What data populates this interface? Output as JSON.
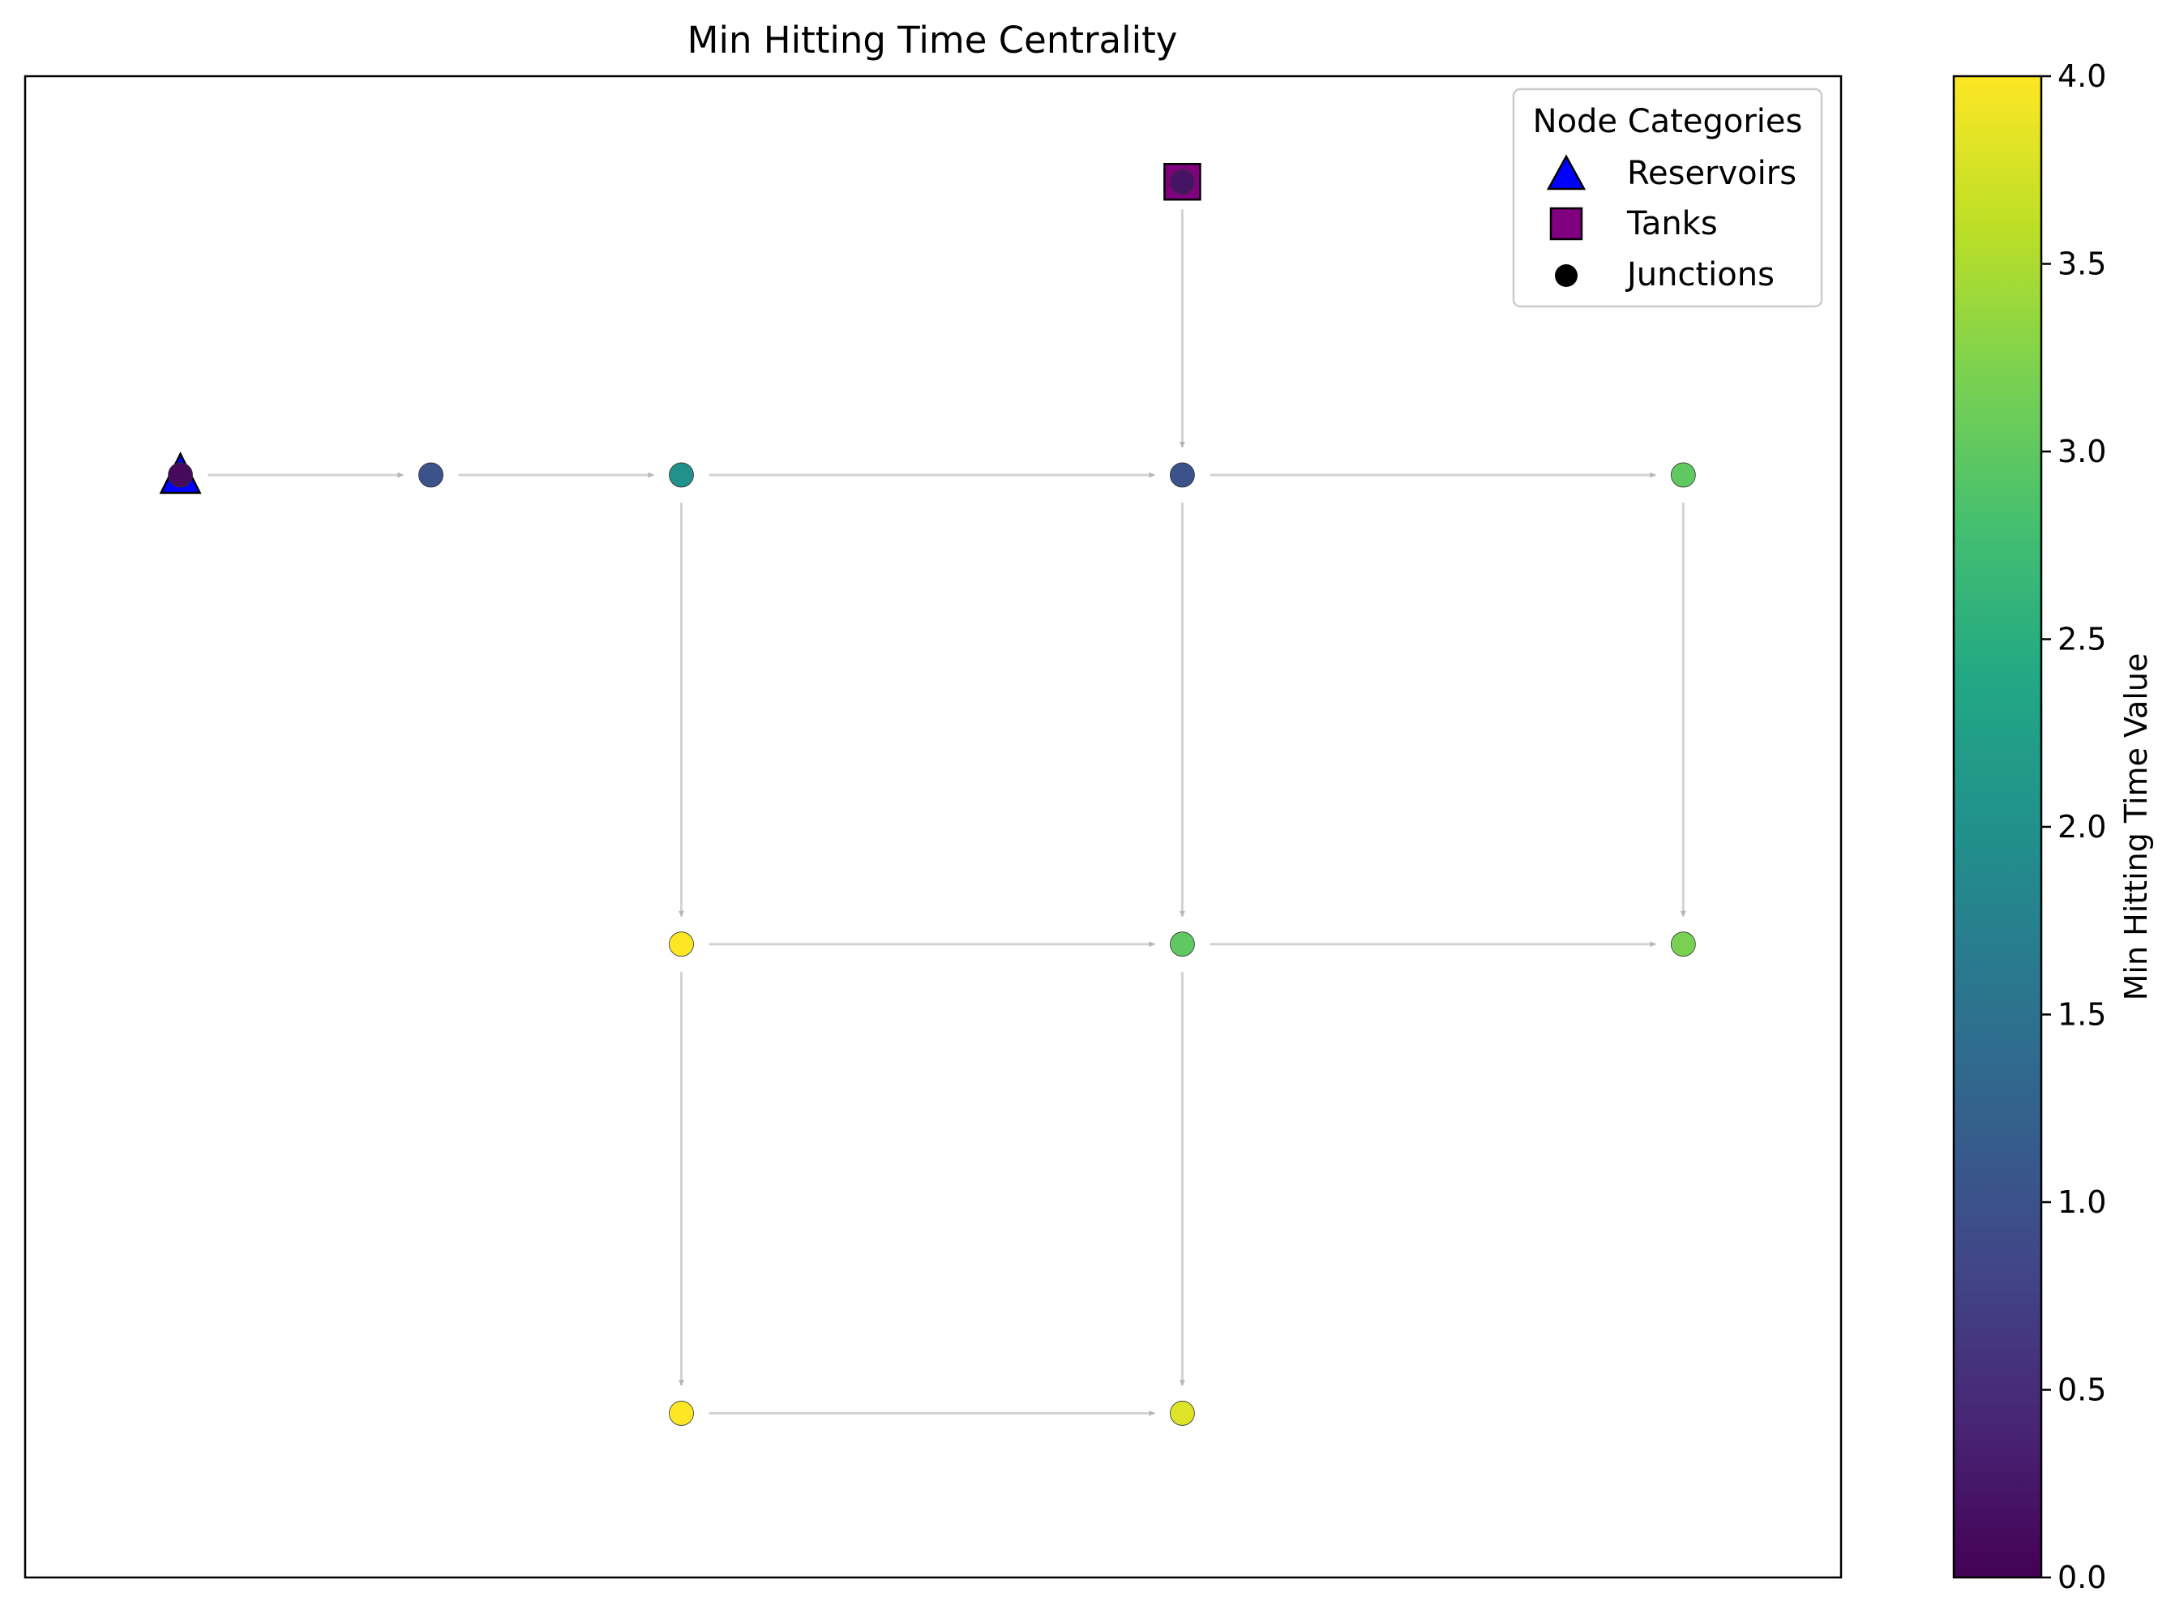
{
  "chart_data": {
    "type": "network",
    "title": "Min Hitting Time Centrality",
    "legend": {
      "title": "Node Categories",
      "position": "top-right",
      "entries": [
        {
          "label": "Reservoirs",
          "marker": "triangle",
          "color": "#0000ff"
        },
        {
          "label": "Tanks",
          "marker": "square",
          "color": "#800080"
        },
        {
          "label": "Junctions",
          "marker": "circle",
          "color": "#000000"
        }
      ]
    },
    "colorbar": {
      "label": "Min Hitting Time Value",
      "colormap": "viridis",
      "min": 0.0,
      "max": 4.0,
      "ticks": [
        "0.0",
        "0.5",
        "1.0",
        "1.5",
        "2.0",
        "2.5",
        "3.0",
        "3.5",
        "4.0"
      ]
    },
    "xlim": [
      0,
      7.25
    ],
    "ylim": [
      -0.5,
      5.9
    ],
    "nodes": [
      {
        "id": "R",
        "category": "reservoir",
        "x": 0.62,
        "y": 4.2,
        "value": 0.1
      },
      {
        "id": "T",
        "category": "tank",
        "x": 4.62,
        "y": 5.45,
        "value": 0.2
      },
      {
        "id": "J1",
        "category": "junction",
        "x": 1.62,
        "y": 4.2,
        "value": 1.0
      },
      {
        "id": "J2",
        "category": "junction",
        "x": 2.62,
        "y": 4.2,
        "value": 2.0
      },
      {
        "id": "J3",
        "category": "junction",
        "x": 4.62,
        "y": 4.2,
        "value": 1.0
      },
      {
        "id": "J4",
        "category": "junction",
        "x": 6.62,
        "y": 4.2,
        "value": 3.0
      },
      {
        "id": "J5",
        "category": "junction",
        "x": 2.62,
        "y": 2.2,
        "value": 4.0
      },
      {
        "id": "J6",
        "category": "junction",
        "x": 4.62,
        "y": 2.2,
        "value": 3.0
      },
      {
        "id": "J7",
        "category": "junction",
        "x": 6.62,
        "y": 2.2,
        "value": 3.2
      },
      {
        "id": "J8",
        "category": "junction",
        "x": 2.62,
        "y": 0.2,
        "value": 4.0
      },
      {
        "id": "J9",
        "category": "junction",
        "x": 4.62,
        "y": 0.2,
        "value": 3.8
      }
    ],
    "edges": [
      {
        "from": "R",
        "to": "J1"
      },
      {
        "from": "J1",
        "to": "J2"
      },
      {
        "from": "J2",
        "to": "J3"
      },
      {
        "from": "J3",
        "to": "J4"
      },
      {
        "from": "T",
        "to": "J3"
      },
      {
        "from": "J2",
        "to": "J5"
      },
      {
        "from": "J3",
        "to": "J6"
      },
      {
        "from": "J4",
        "to": "J7"
      },
      {
        "from": "J5",
        "to": "J6"
      },
      {
        "from": "J6",
        "to": "J7"
      },
      {
        "from": "J5",
        "to": "J8"
      },
      {
        "from": "J6",
        "to": "J9"
      },
      {
        "from": "J8",
        "to": "J9"
      }
    ]
  }
}
